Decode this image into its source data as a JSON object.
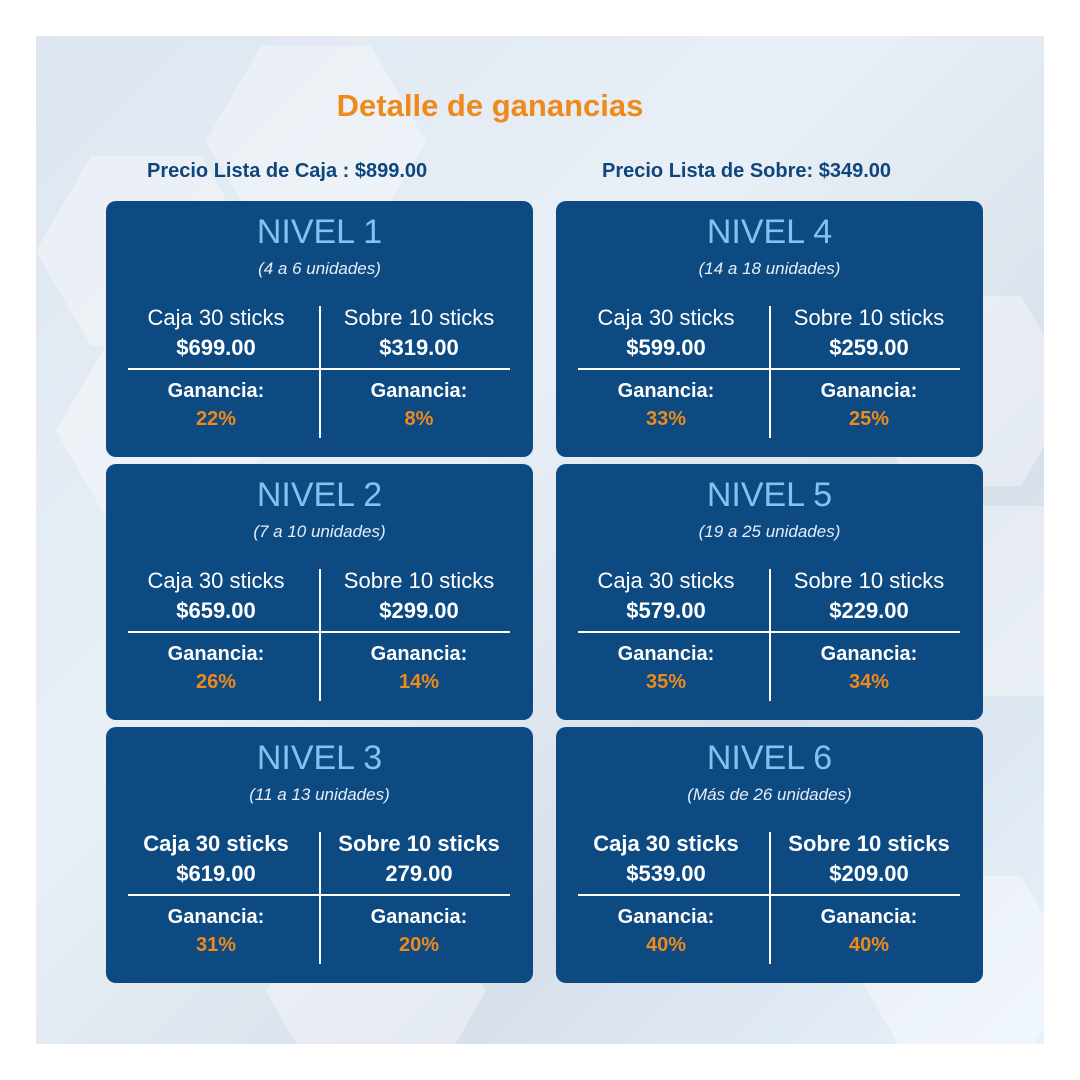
{
  "title": "Detalle de ganancias",
  "list_prices": {
    "caja": "Precio Lista de Caja : $899.00",
    "sobre": "Precio Lista de Sobre: $349.00"
  },
  "gain_label": "Ganancia:",
  "colors": {
    "card": "#0d4a82",
    "accent": "#ee8a1c",
    "level": "#7fc3ee"
  },
  "levels": [
    {
      "level": "NIVEL 1",
      "range": "(4 a 6 unidades)",
      "caja_name": "Caja 30 sticks",
      "caja_price": "$699.00",
      "sobre_name": "Sobre 10 sticks",
      "sobre_price": "$319.00",
      "caja_gain": "22%",
      "sobre_gain": "8%"
    },
    {
      "level": "NIVEL 2",
      "range": "(7 a 10 unidades)",
      "caja_name": "Caja 30 sticks",
      "caja_price": "$659.00",
      "sobre_name": "Sobre 10 sticks",
      "sobre_price": "$299.00",
      "caja_gain": "26%",
      "sobre_gain": "14%"
    },
    {
      "level": "NIVEL 3",
      "range": "(11 a 13 unidades)",
      "caja_name": "Caja 30 sticks",
      "caja_price": "$619.00",
      "sobre_name": "Sobre 10 sticks",
      "sobre_price": "279.00",
      "caja_gain": "31%",
      "sobre_gain": "20%"
    },
    {
      "level": "NIVEL 4",
      "range": "(14 a 18 unidades)",
      "caja_name": "Caja 30 sticks",
      "caja_price": "$599.00",
      "sobre_name": "Sobre 10 sticks",
      "sobre_price": "$259.00",
      "caja_gain": "33%",
      "sobre_gain": "25%"
    },
    {
      "level": "NIVEL 5",
      "range": "(19 a 25 unidades)",
      "caja_name": "Caja 30 sticks",
      "caja_price": "$579.00",
      "sobre_name": "Sobre 10 sticks",
      "sobre_price": "$229.00",
      "caja_gain": "35%",
      "sobre_gain": "34%"
    },
    {
      "level": "NIVEL 6",
      "range": "(Más de 26 unidades)",
      "caja_name": "Caja 30 sticks",
      "caja_price": "$539.00",
      "sobre_name": "Sobre 10 sticks",
      "sobre_price": "$209.00",
      "caja_gain": "40%",
      "sobre_gain": "40%"
    }
  ]
}
